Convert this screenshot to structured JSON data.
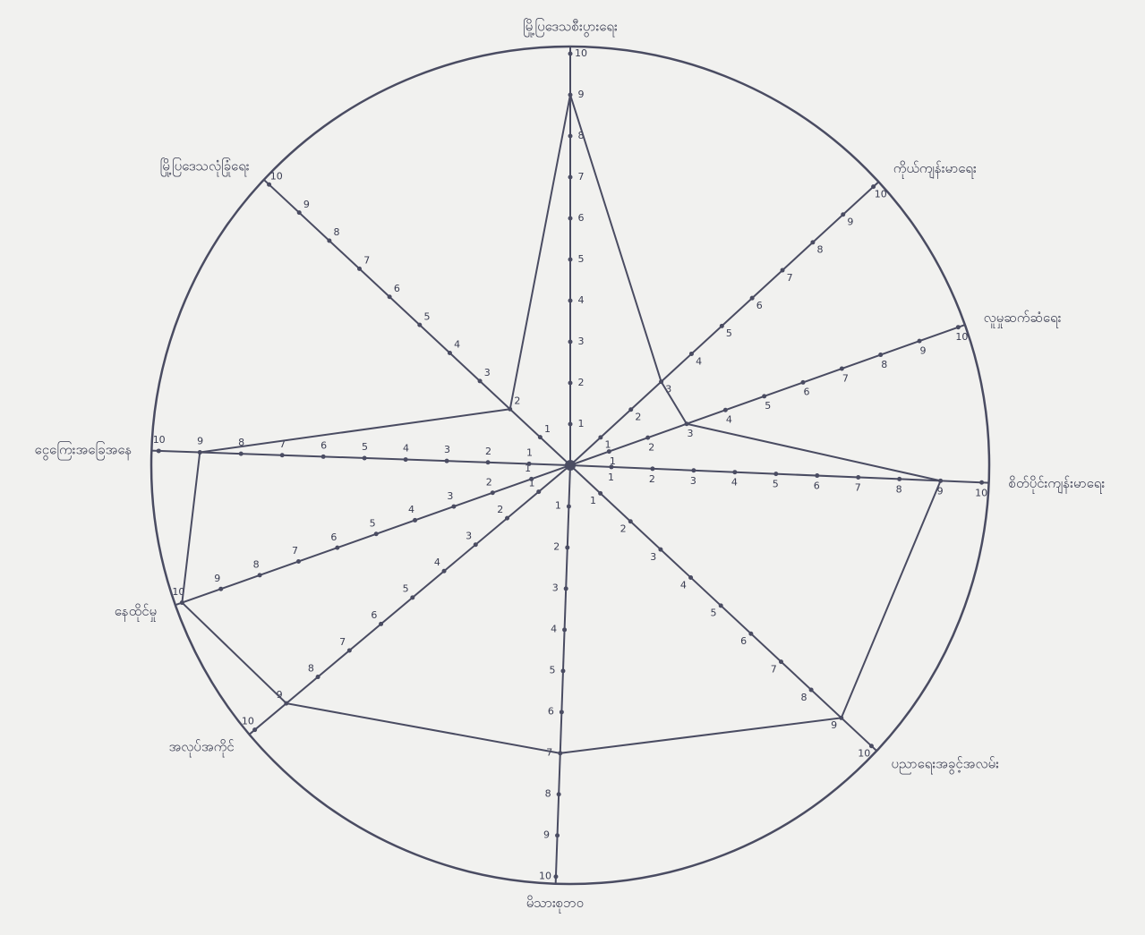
{
  "chart_data": {
    "type": "radar",
    "axes": [
      "မြို့ပြဒေသစီးပွားရေး",
      "ကိုယ်ကျန်းမာရေး",
      "လူမှုဆက်ဆံရေး",
      "စိတ်ပိုင်းကျန်းမာရေး",
      "ပညာရေးအခွင့်အလမ်း",
      "မိသားစုဘဝ",
      "အလုပ်အကိုင်",
      "နေထိုင်မှု",
      "ငွေကြေးအခြေအနေ",
      "မြို့ပြဒေသလုံခြုံရေး"
    ],
    "values": [
      9,
      3,
      3,
      9,
      9,
      7,
      9,
      10,
      9,
      2
    ],
    "rlim": [
      0,
      10
    ],
    "rticks": [
      1,
      2,
      3,
      4,
      5,
      6,
      7,
      8,
      9,
      10
    ],
    "color": "#4a4c62"
  }
}
